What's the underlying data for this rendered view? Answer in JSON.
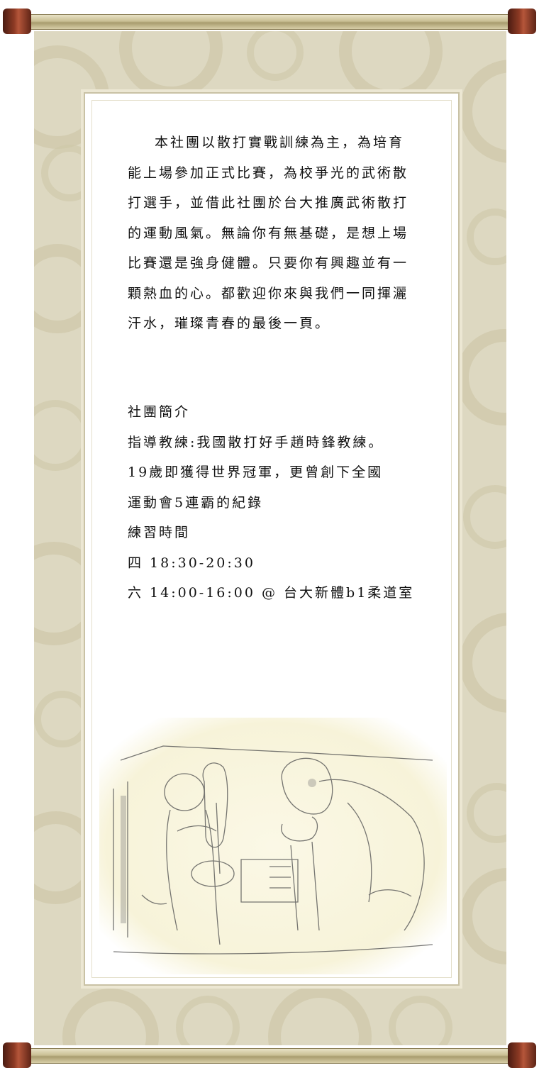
{
  "intro": {
    "paragraph": "本社團以散打實戰訓練為主，為培育能上場參加正式比賽，為校爭光的武術散打選手，並借此社團於台大推廣武術散打的運動風氣。無論你有無基礎，是想上場比賽還是強身健體。只要你有興趣並有一顆熱血的心。都歡迎你來與我們一同揮灑汗水，璀璨青春的最後一頁。"
  },
  "info": {
    "heading": "社團簡介",
    "coach_line1": "指導教練:我國散打好手趙時鋒教練。",
    "coach_line2": "19歲即獲得世界冠軍，更曾創下全國",
    "coach_line3": "運動會5連霸的紀錄",
    "schedule_heading": "練習時間",
    "schedule_thu": "四 18:30-20:30",
    "schedule_sat": "六 14:00-16:00 @ 台大新體b1柔道室"
  },
  "colors": {
    "rod_cap": "#8d3a24",
    "paper": "#ddd8c1",
    "text": "#111111"
  }
}
